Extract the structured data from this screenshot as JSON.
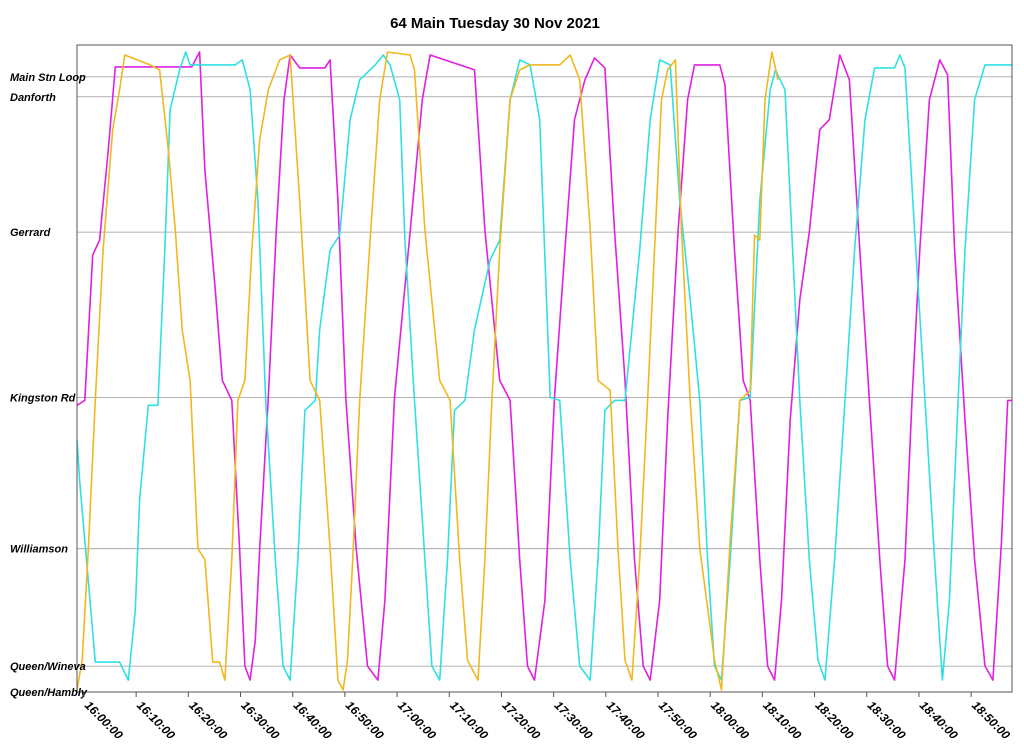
{
  "chart_data": {
    "type": "line",
    "title": "64 Main Tuesday 30 Nov 2021",
    "xlim": [
      "15:58:40",
      "18:57:50"
    ],
    "xticks": [
      "16:00:00",
      "16:10:00",
      "16:20:00",
      "16:30:00",
      "16:40:00",
      "16:50:00",
      "17:00:00",
      "17:10:00",
      "17:20:00",
      "17:30:00",
      "17:40:00",
      "17:50:00",
      "18:00:00",
      "18:10:00",
      "18:20:00",
      "18:30:00",
      "18:40:00",
      "18:50:00"
    ],
    "ylim": [
      0,
      6.5
    ],
    "yticks": [
      {
        "value": 0,
        "label": "Queen/Hambly"
      },
      {
        "value": 0.26,
        "label": "Queen/Wineva"
      },
      {
        "value": 1.44,
        "label": "Williamson"
      },
      {
        "value": 2.96,
        "label": "Kingston Rd"
      },
      {
        "value": 4.62,
        "label": "Gerrard"
      },
      {
        "value": 5.98,
        "label": "Danforth"
      },
      {
        "value": 6.18,
        "label": "Main Stn Loop"
      }
    ],
    "grid": true,
    "series": [
      {
        "color": "#e020e0",
        "x": [
          "15:58:40",
          "16:00:10",
          "16:01:40",
          "16:03:00",
          "16:04:40",
          "16:06:00",
          "16:07:20",
          "16:20:40",
          "16:22:10",
          "16:23:10",
          "16:25:10",
          "16:26:30",
          "16:28:20",
          "16:29:50",
          "16:30:50",
          "16:31:50",
          "16:32:50",
          "16:33:40",
          "16:35:20",
          "16:36:50",
          "16:38:20",
          "16:39:30",
          "16:41:20",
          "16:46:10",
          "16:47:10",
          "16:48:40",
          "16:50:10",
          "16:52:10",
          "16:54:20",
          "16:56:20",
          "16:57:40",
          "16:59:30",
          "17:02:30",
          "17:04:50",
          "17:06:20",
          "17:12:00",
          "17:14:50",
          "17:16:50",
          "17:19:40",
          "17:21:40",
          "17:23:30",
          "17:25:00",
          "17:26:20",
          "17:28:20",
          "17:30:10",
          "17:32:10",
          "17:34:00",
          "17:36:00",
          "17:37:50",
          "17:39:50",
          "17:41:40",
          "17:43:40",
          "17:45:30",
          "17:47:10",
          "17:48:30",
          "17:50:20",
          "17:51:50",
          "17:53:50",
          "17:55:40",
          "17:57:00",
          "18:01:50",
          "18:02:50",
          "18:04:40",
          "18:06:20",
          "18:07:40",
          "18:09:30",
          "18:11:00",
          "18:12:20",
          "18:13:40",
          "18:15:20",
          "18:17:10",
          "18:19:00",
          "18:21:00",
          "18:22:50",
          "18:24:50",
          "18:26:40",
          "18:28:40",
          "18:30:30",
          "18:32:30",
          "18:34:00",
          "18:35:20",
          "18:37:20",
          "18:38:40",
          "18:40:10",
          "18:42:00",
          "18:44:00",
          "18:45:30",
          "18:46:50",
          "18:48:50",
          "18:50:40",
          "18:52:40",
          "18:54:10",
          "18:55:50",
          "18:57:00",
          "18:57:50"
        ],
        "values": [
          2.88,
          2.93,
          4.39,
          4.54,
          5.45,
          6.28,
          6.28,
          6.28,
          6.43,
          5.24,
          4.04,
          3.13,
          2.93,
          1.44,
          0.26,
          0.12,
          0.52,
          1.44,
          2.96,
          4.62,
          5.95,
          6.4,
          6.27,
          6.27,
          6.35,
          4.94,
          2.96,
          1.44,
          0.26,
          0.12,
          0.92,
          2.96,
          4.62,
          5.95,
          6.4,
          6.3,
          6.25,
          4.64,
          3.13,
          2.93,
          1.33,
          0.26,
          0.12,
          0.92,
          2.96,
          4.44,
          5.75,
          6.15,
          6.37,
          6.27,
          4.64,
          3.13,
          1.33,
          0.26,
          0.12,
          0.92,
          2.73,
          4.62,
          5.95,
          6.3,
          6.3,
          6.1,
          4.44,
          3.13,
          2.93,
          1.33,
          0.26,
          0.12,
          0.92,
          2.73,
          3.94,
          4.62,
          5.65,
          5.75,
          6.4,
          6.15,
          4.44,
          2.93,
          1.33,
          0.26,
          0.12,
          1.33,
          2.93,
          4.44,
          5.95,
          6.35,
          6.2,
          4.44,
          2.73,
          1.33,
          0.26,
          0.12,
          1.53,
          2.93,
          2.93
        ]
      },
      {
        "color": "#30e0e0",
        "x": [
          "15:58:40",
          "15:59:10",
          "16:01:10",
          "16:02:10",
          "16:06:50",
          "16:08:30",
          "16:09:50",
          "16:10:40",
          "16:12:20",
          "16:14:10",
          "16:15:30",
          "16:16:30",
          "16:18:20",
          "16:19:30",
          "16:20:20",
          "16:29:00",
          "16:30:20",
          "16:31:50",
          "16:33:20",
          "16:34:50",
          "16:36:40",
          "16:38:10",
          "16:39:30",
          "16:41:00",
          "16:42:20",
          "16:44:20",
          "16:45:10",
          "16:47:10",
          "16:49:00",
          "16:51:00",
          "16:52:50",
          "16:55:50",
          "16:57:20",
          "16:58:40",
          "17:00:30",
          "17:01:30",
          "17:03:20",
          "17:05:20",
          "17:06:40",
          "17:08:10",
          "17:09:40",
          "17:11:00",
          "17:13:00",
          "17:14:50",
          "17:17:50",
          "17:19:40",
          "17:21:40",
          "17:23:30",
          "17:25:30",
          "17:27:20",
          "17:29:20",
          "17:31:10",
          "17:33:10",
          "17:35:00",
          "17:37:00",
          "17:38:30",
          "17:39:50",
          "17:41:40",
          "17:43:40",
          "17:46:30",
          "17:48:30",
          "17:50:20",
          "17:52:20",
          "17:54:10",
          "17:56:10",
          "17:58:00",
          "17:59:30",
          "18:00:50",
          "18:02:10",
          "18:03:50",
          "18:05:40",
          "18:07:40",
          "18:09:30",
          "18:11:30",
          "18:12:30",
          "18:14:20",
          "18:17:10",
          "18:19:00",
          "18:20:40",
          "18:22:00",
          "18:23:50",
          "18:25:50",
          "18:27:40",
          "18:29:40",
          "18:31:30",
          "18:35:20",
          "18:36:20",
          "18:37:20",
          "18:39:10",
          "18:41:10",
          "18:43:00",
          "18:44:30",
          "18:45:50",
          "18:47:30",
          "18:48:50",
          "18:50:40",
          "18:52:40",
          "18:57:50"
        ],
        "values": [
          2.53,
          2.13,
          0.92,
          0.3,
          0.3,
          0.12,
          0.82,
          1.93,
          2.88,
          2.88,
          4.44,
          5.85,
          6.25,
          6.43,
          6.3,
          6.3,
          6.35,
          6.05,
          4.94,
          2.93,
          1.33,
          0.26,
          0.12,
          1.33,
          2.83,
          2.93,
          3.64,
          4.44,
          4.59,
          5.75,
          6.15,
          6.3,
          6.4,
          6.3,
          5.95,
          4.54,
          2.93,
          1.33,
          0.26,
          0.12,
          1.33,
          2.83,
          2.93,
          3.64,
          4.34,
          4.54,
          5.95,
          6.35,
          6.3,
          5.75,
          2.96,
          2.93,
          1.33,
          0.26,
          0.12,
          1.33,
          2.83,
          2.93,
          2.93,
          4.44,
          5.75,
          6.35,
          6.3,
          4.94,
          3.94,
          2.93,
          1.33,
          0.26,
          0.12,
          1.33,
          2.93,
          2.96,
          4.94,
          6.05,
          6.25,
          6.05,
          2.93,
          1.33,
          0.32,
          0.12,
          1.33,
          2.93,
          4.44,
          5.75,
          6.27,
          6.27,
          6.4,
          6.27,
          4.64,
          2.93,
          1.33,
          0.12,
          0.92,
          2.93,
          4.44,
          5.95,
          6.3,
          6.3
        ]
      },
      {
        "color": "#f0b820",
        "x": [
          "15:58:40",
          "15:59:40",
          "16:00:50",
          "16:02:10",
          "16:03:40",
          "16:05:30",
          "16:06:50",
          "16:07:50",
          "16:12:40",
          "16:14:30",
          "16:16:10",
          "16:17:30",
          "16:18:50",
          "16:20:20",
          "16:21:50",
          "16:23:10",
          "16:24:40",
          "16:26:00",
          "16:27:00",
          "16:28:20",
          "16:29:30",
          "16:30:50",
          "16:32:10",
          "16:33:40",
          "16:35:20",
          "16:37:30",
          "16:39:30",
          "16:41:20",
          "16:43:20",
          "16:45:10",
          "16:47:10",
          "16:48:40",
          "16:49:40",
          "16:50:30",
          "16:51:30",
          "16:52:50",
          "16:54:50",
          "16:56:40",
          "16:58:10",
          "17:02:30",
          "17:03:20",
          "17:05:20",
          "17:08:10",
          "17:10:10",
          "17:12:00",
          "17:13:30",
          "17:15:30",
          "17:16:50",
          "17:18:10",
          "17:19:40",
          "17:21:40",
          "17:23:30",
          "17:25:30",
          "17:31:10",
          "17:33:10",
          "17:35:00",
          "17:37:00",
          "17:38:30",
          "17:40:50",
          "17:42:20",
          "17:43:40",
          "17:45:00",
          "17:46:30",
          "17:48:00",
          "17:49:20",
          "17:50:40",
          "17:51:50",
          "17:53:20",
          "17:54:30",
          "17:56:10",
          "17:58:00",
          "18:00:50",
          "18:02:10",
          "18:03:50",
          "18:05:40",
          "18:07:40",
          "18:08:30",
          "18:09:30",
          "18:10:30",
          "18:11:50",
          "18:13:00"
        ],
        "values": [
          0.02,
          0.32,
          1.43,
          2.93,
          4.44,
          5.65,
          6.05,
          6.4,
          6.3,
          6.25,
          5.45,
          4.64,
          3.64,
          3.13,
          1.44,
          1.33,
          0.3,
          0.3,
          0.12,
          1.33,
          2.93,
          3.13,
          4.44,
          5.55,
          6.05,
          6.35,
          6.4,
          4.94,
          3.13,
          2.93,
          1.44,
          0.12,
          0.02,
          0.32,
          1.33,
          2.93,
          4.54,
          5.95,
          6.43,
          6.4,
          6.25,
          4.64,
          3.13,
          2.93,
          1.33,
          0.32,
          0.12,
          1.33,
          2.93,
          4.44,
          5.95,
          6.25,
          6.3,
          6.3,
          6.4,
          6.15,
          4.64,
          3.13,
          3.03,
          1.44,
          0.32,
          0.12,
          1.33,
          2.93,
          4.44,
          5.95,
          6.25,
          6.35,
          4.64,
          2.93,
          1.44,
          0.32,
          0.02,
          1.53,
          2.93,
          3.03,
          4.59,
          4.54,
          5.95,
          6.43,
          6.15
        ]
      }
    ]
  }
}
